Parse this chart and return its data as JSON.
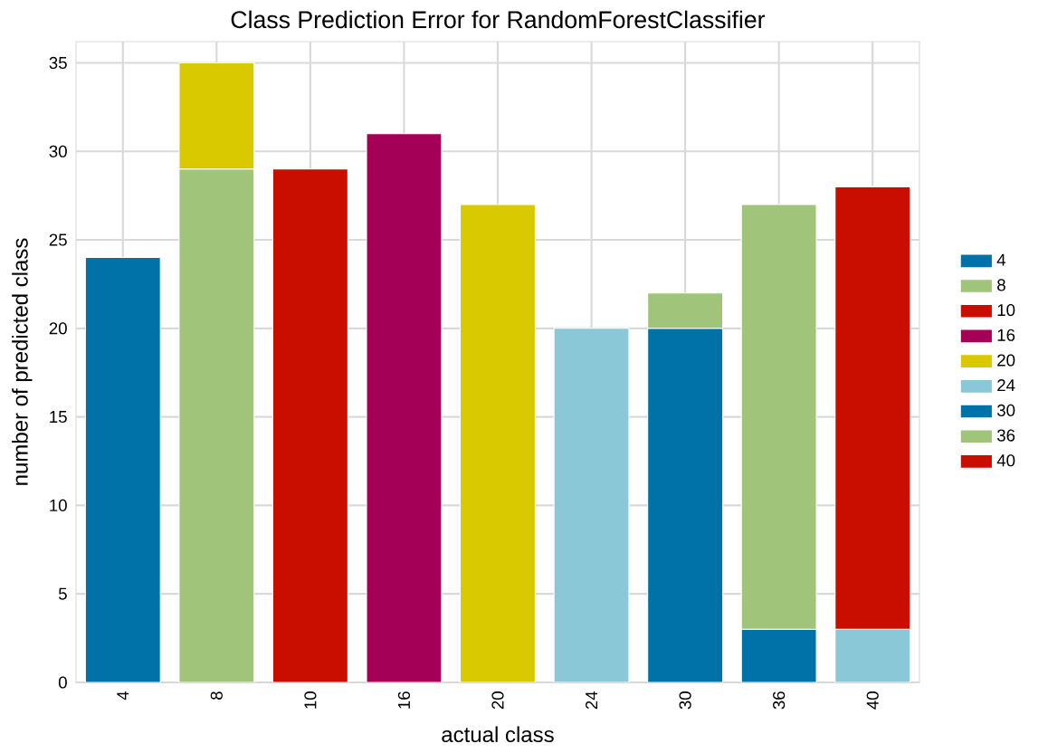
{
  "chart_data": {
    "type": "bar",
    "stacked": true,
    "title": "Class Prediction Error for RandomForestClassifier",
    "xlabel": "actual class",
    "ylabel": "number of predicted class",
    "categories": [
      "4",
      "8",
      "10",
      "16",
      "20",
      "24",
      "30",
      "36",
      "40"
    ],
    "series": [
      {
        "name": "4",
        "color": "#0072a7",
        "values": [
          24,
          null,
          null,
          null,
          null,
          null,
          null,
          null,
          null
        ]
      },
      {
        "name": "8",
        "color": "#a0c47a",
        "values": [
          null,
          29,
          null,
          null,
          null,
          null,
          null,
          null,
          null
        ]
      },
      {
        "name": "10",
        "color": "#c90e00",
        "values": [
          null,
          null,
          29,
          null,
          null,
          null,
          null,
          null,
          null
        ]
      },
      {
        "name": "16",
        "color": "#a50058",
        "values": [
          null,
          null,
          null,
          31,
          null,
          null,
          null,
          null,
          null
        ]
      },
      {
        "name": "20",
        "color": "#d8c900",
        "values": [
          null,
          6,
          null,
          null,
          27,
          null,
          null,
          null,
          null
        ]
      },
      {
        "name": "24",
        "color": "#8ac8d8",
        "values": [
          null,
          null,
          null,
          null,
          null,
          20,
          null,
          null,
          3
        ]
      },
      {
        "name": "30",
        "color": "#0072a7",
        "values": [
          null,
          null,
          null,
          null,
          null,
          null,
          20,
          3,
          null
        ]
      },
      {
        "name": "36",
        "color": "#a0c47a",
        "values": [
          null,
          null,
          null,
          null,
          null,
          null,
          2,
          24,
          null
        ]
      },
      {
        "name": "40",
        "color": "#c90e00",
        "values": [
          null,
          null,
          null,
          null,
          null,
          null,
          null,
          null,
          25
        ]
      }
    ],
    "ylim": [
      0,
      36.2
    ],
    "yticks": [
      0,
      5,
      10,
      15,
      20,
      25,
      30,
      35
    ],
    "grid": true,
    "legend": "right"
  }
}
